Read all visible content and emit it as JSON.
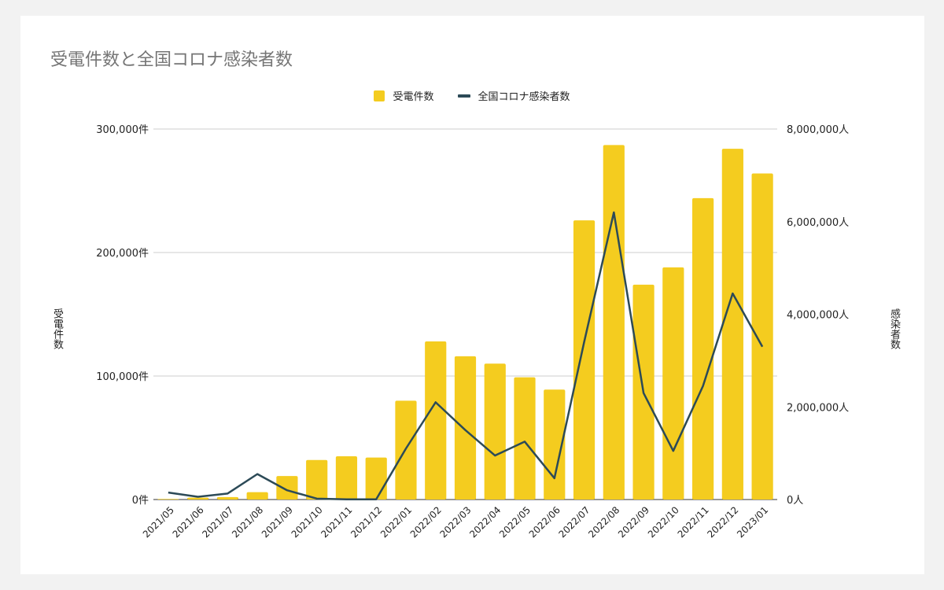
{
  "chart_data": {
    "type": "bar",
    "title": "受電件数と全国コロナ感染者数",
    "categories": [
      "2021/05",
      "2021/06",
      "2021/07",
      "2021/08",
      "2021/09",
      "2021/10",
      "2021/11",
      "2021/12",
      "2022/01",
      "2022/02",
      "2022/03",
      "2022/04",
      "2022/05",
      "2022/06",
      "2022/07",
      "2022/08",
      "2022/09",
      "2022/10",
      "2022/11",
      "2022/12",
      "2023/01"
    ],
    "series": [
      {
        "name": "受電件数",
        "type": "bar",
        "axis": "left",
        "color": "#f4cc1f",
        "values": [
          500,
          1500,
          2000,
          6000,
          19000,
          32000,
          35000,
          34000,
          80000,
          128000,
          116000,
          110000,
          99000,
          89000,
          226000,
          287000,
          174000,
          188000,
          244000,
          284000,
          264000
        ]
      },
      {
        "name": "全国コロナ感染者数",
        "type": "line",
        "axis": "right",
        "color": "#2c4a57",
        "values": [
          150000,
          60000,
          130000,
          550000,
          200000,
          20000,
          5000,
          5000,
          1100000,
          2100000,
          1500000,
          950000,
          1250000,
          460000,
          3400000,
          6200000,
          2300000,
          1050000,
          2450000,
          4450000,
          3300000
        ]
      }
    ],
    "ylabel": "受電件数",
    "y2label": "感染者数",
    "ylim": [
      0,
      300000
    ],
    "y2lim": [
      0,
      8000000
    ],
    "yticks": [
      "0件",
      "100,000件",
      "200,000件",
      "300,000件"
    ],
    "y2ticks": [
      "0人",
      "2,000,000人",
      "4,000,000人",
      "6,000,000人",
      "8,000,000人"
    ],
    "legend": "top-center",
    "grid": true
  }
}
